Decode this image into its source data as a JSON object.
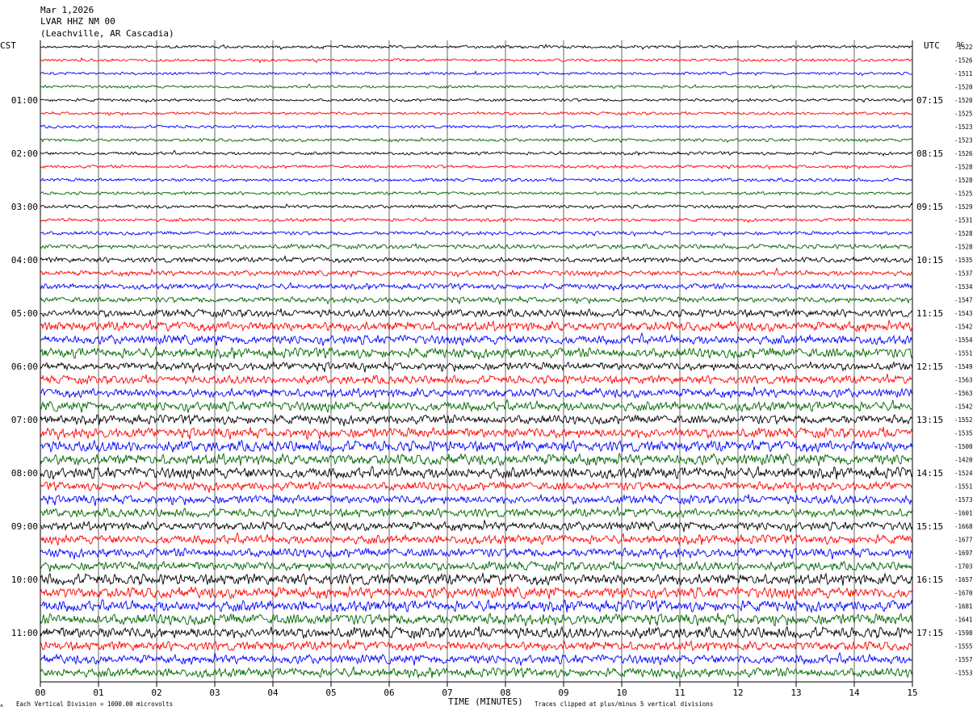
{
  "header": {
    "date": "Mar 1,2026",
    "station": "LVAR HHZ NM 00",
    "location": "(Leachville, AR Cascadia)"
  },
  "left_timezone": "CST",
  "right_timezone": "UTC",
  "dc_header": "DC",
  "footer": {
    "mark": "ᴀ",
    "scale_note": "Each Vertical Division = 1000.00 microvolts",
    "xlabel": "TIME (MINUTES)",
    "clip_note": "Traces clipped at plus/minus 5 vertical divisions"
  },
  "chart_data": {
    "type": "line",
    "title": "LVAR HHZ NM 00",
    "xlabel": "TIME (MINUTES)",
    "x_range": [
      0,
      15
    ],
    "x_ticks": [
      "00",
      "01",
      "02",
      "03",
      "04",
      "05",
      "06",
      "07",
      "08",
      "09",
      "10",
      "11",
      "12",
      "13",
      "14",
      "15"
    ],
    "grid": true,
    "trace_colors": [
      "#000000",
      "#ff0000",
      "#0000ff",
      "#006400"
    ],
    "left_hour_labels": [
      "01:00",
      "02:00",
      "03:00",
      "04:00",
      "05:00",
      "06:00",
      "07:00",
      "08:00",
      "09:00",
      "10:00",
      "11:00"
    ],
    "right_hour_labels": [
      "07:15",
      "08:15",
      "09:15",
      "10:15",
      "11:15",
      "12:15",
      "13:15",
      "14:15",
      "15:15",
      "16:15",
      "17:15"
    ],
    "dc_offsets": [
      "-1522",
      "-1526",
      "-1511",
      "-1520",
      "-1520",
      "-1525",
      "-1523",
      "-1523",
      "-1526",
      "-1528",
      "-1528",
      "-1525",
      "-1529",
      "-1531",
      "-1528",
      "-1528",
      "-1535",
      "-1537",
      "-1534",
      "-1547",
      "-1543",
      "-1542",
      "-1554",
      "-1551",
      "-1549",
      "-1563",
      "-1563",
      "-1542",
      "-1552",
      "-1535",
      "-1500",
      "-1420",
      "-1524",
      "-1551",
      "-1573",
      "-1601",
      "-1668",
      "-1677",
      "-1697",
      "-1703",
      "-1657",
      "-1670",
      "-1681",
      "-1641",
      "-1598",
      "-1555",
      "-1557",
      "-1553"
    ],
    "noise_level": [
      0.18,
      0.16,
      0.16,
      0.17,
      0.18,
      0.18,
      0.18,
      0.2,
      0.2,
      0.2,
      0.22,
      0.2,
      0.22,
      0.22,
      0.26,
      0.35,
      0.4,
      0.42,
      0.45,
      0.45,
      0.65,
      0.85,
      0.8,
      0.9,
      0.7,
      0.72,
      0.78,
      0.85,
      0.8,
      0.9,
      1.0,
      1.0,
      1.0,
      0.75,
      0.75,
      0.75,
      0.75,
      0.8,
      0.8,
      0.78,
      1.0,
      1.0,
      1.0,
      1.0,
      1.0,
      0.82,
      0.8,
      0.82
    ]
  }
}
